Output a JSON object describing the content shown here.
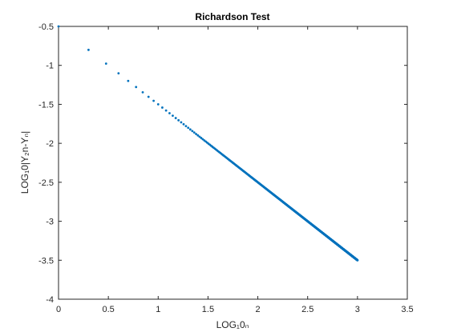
{
  "chart_data": {
    "type": "scatter",
    "title": "Richardson Test",
    "xlabel": "LOG₁0ₙ",
    "ylabel": "LOG₁0|Y₂n-Yₙ|",
    "xlim": [
      0,
      3.5
    ],
    "ylim": [
      -4,
      -0.5
    ],
    "xticks": [
      0,
      0.5,
      1,
      1.5,
      2,
      2.5,
      3,
      3.5
    ],
    "xtick_labels": [
      "0",
      "0.5",
      "1",
      "1.5",
      "2",
      "2.5",
      "3",
      "3.5"
    ],
    "yticks": [
      -4,
      -3.5,
      -3,
      -2.5,
      -2,
      -1.5,
      -1,
      -0.5
    ],
    "ytick_labels": [
      "-4",
      "-3.5",
      "-3",
      "-2.5",
      "-2",
      "-1.5",
      "-1",
      "-0.5"
    ],
    "grid": false,
    "marker_color": "#0072BD",
    "series": [
      {
        "n_start": 1,
        "n_end": 1000,
        "x_formula": "log10(n)",
        "y_formula": "-0.5 - log10(n)",
        "sample_points": [
          {
            "x": 0,
            "y": -0.5
          },
          {
            "x": 0.301,
            "y": -0.801
          },
          {
            "x": 1,
            "y": -1.5
          },
          {
            "x": 2,
            "y": -2.5
          },
          {
            "x": 3,
            "y": -3.5
          }
        ]
      }
    ]
  }
}
